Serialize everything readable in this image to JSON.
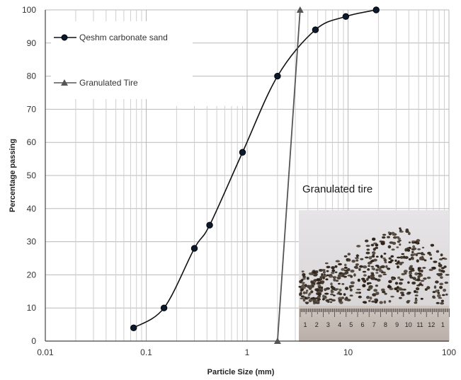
{
  "chart_data": {
    "type": "line",
    "title": "",
    "xlabel": "Particle Size (mm)",
    "ylabel": "Percentage passing",
    "x_scale": "log",
    "xlim": [
      0.01,
      100
    ],
    "ylim": [
      0,
      100
    ],
    "x_ticks": [
      "0.01",
      "0.1",
      "1",
      "10",
      "100"
    ],
    "y_ticks": [
      "0",
      "10",
      "20",
      "30",
      "40",
      "50",
      "60",
      "70",
      "80",
      "90",
      "100"
    ],
    "grid": true,
    "legend_position": "top-left",
    "series": [
      {
        "name": "Qeshm carbonate sand",
        "marker": "circle",
        "color": "#111111",
        "marker_color": "#0b1a2e",
        "x": [
          0.075,
          0.15,
          0.3,
          0.425,
          0.9,
          2.0,
          4.75,
          9.5,
          19
        ],
        "y": [
          4,
          10,
          28,
          35,
          57,
          80,
          94,
          98,
          100
        ]
      },
      {
        "name": "Granulated Tire",
        "marker": "triangle",
        "color": "#555555",
        "marker_color": "#555555",
        "x": [
          2.0,
          3.35
        ],
        "y": [
          0,
          100
        ]
      }
    ],
    "annotations": [
      {
        "text": "Granulated tire",
        "position": "inset-photo-label"
      }
    ],
    "inset_image": {
      "description_icon": "granulated-tire-photo",
      "ruler_numbers": [
        "1",
        "2",
        "3",
        "4",
        "5",
        "6",
        "7",
        "8",
        "9",
        "10",
        "11",
        "12",
        "1"
      ]
    }
  }
}
